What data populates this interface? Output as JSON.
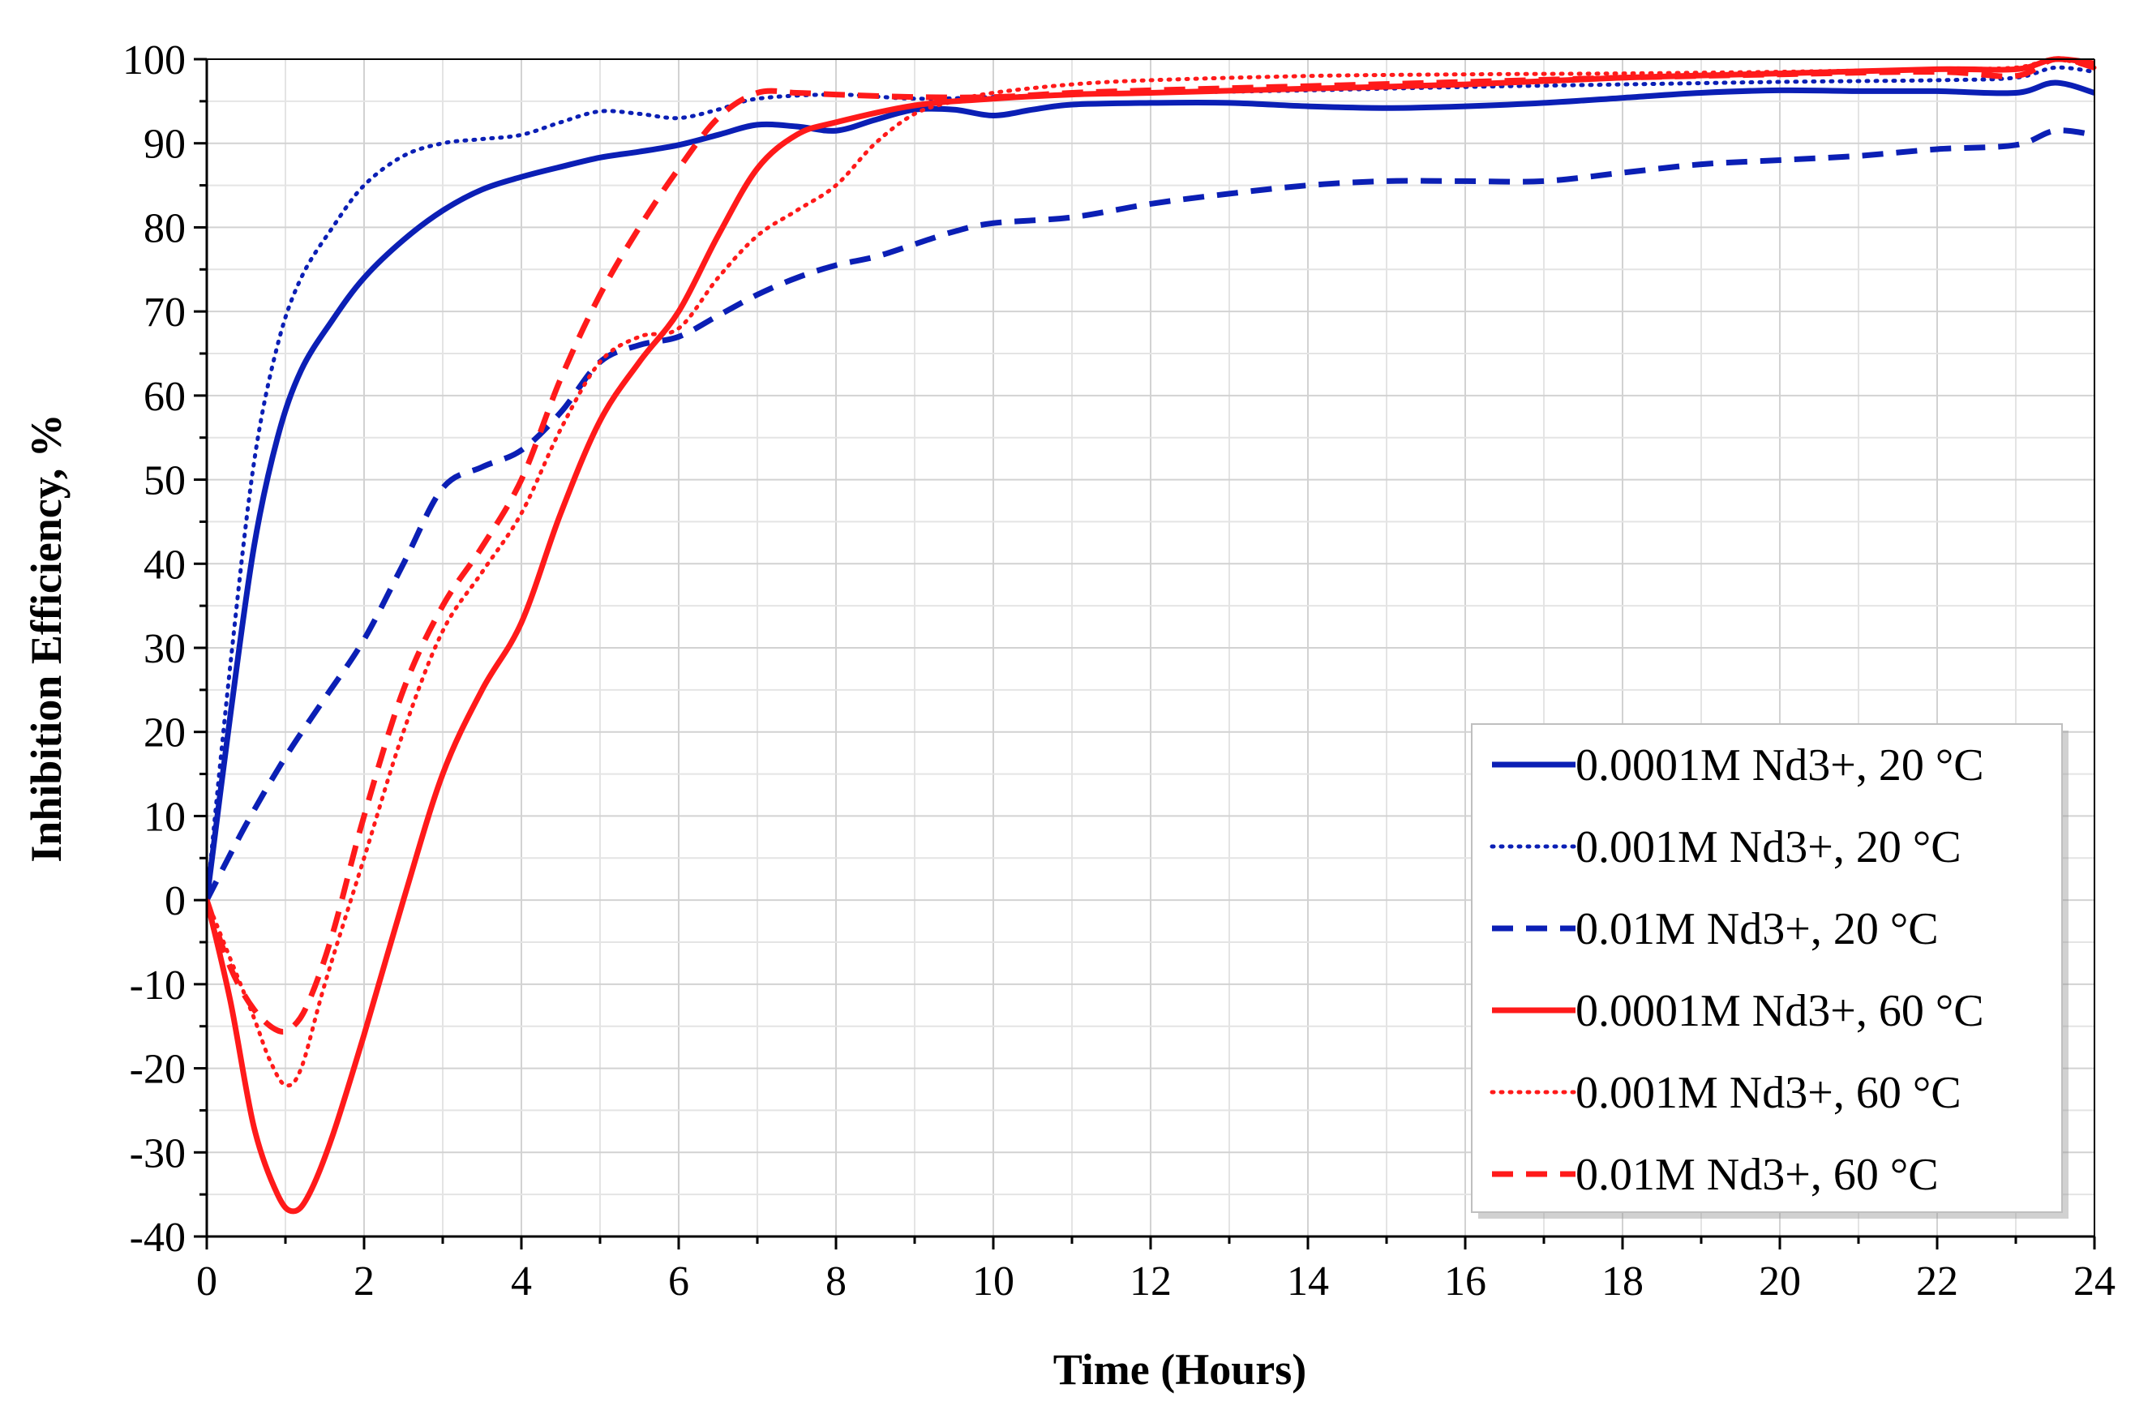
{
  "chart_data": {
    "type": "line",
    "title": "",
    "xlabel": "Time (Hours)",
    "ylabel": "Inhibition Efficiency, %",
    "xlim": [
      0,
      24
    ],
    "ylim": [
      -40,
      100
    ],
    "xticks": [
      0,
      2,
      4,
      6,
      8,
      10,
      12,
      14,
      16,
      18,
      20,
      22,
      24
    ],
    "yticks": [
      -40,
      -30,
      -20,
      -10,
      0,
      10,
      20,
      30,
      40,
      50,
      60,
      70,
      80,
      90,
      100
    ],
    "xtick_labels": [
      "0",
      "2",
      "4",
      "6",
      "8",
      "10",
      "12",
      "14",
      "16",
      "18",
      "20",
      "22",
      "24"
    ],
    "ytick_labels": [
      "-40",
      "-30",
      "-20",
      "-10",
      "0",
      "10",
      "20",
      "30",
      "40",
      "50",
      "60",
      "70",
      "80",
      "90",
      "100"
    ],
    "grid": true,
    "legend_position": "bottom-right",
    "series": [
      {
        "name": "0.0001M Nd3+, 20 °C",
        "color": "#0b1fb5",
        "style": "solid",
        "x": [
          0,
          0.3,
          0.6,
          0.9,
          1.2,
          1.6,
          2.0,
          2.5,
          3.0,
          3.5,
          4.0,
          4.5,
          5.0,
          5.5,
          6.0,
          6.5,
          7.0,
          7.5,
          8.0,
          8.5,
          9.0,
          9.5,
          10.0,
          10.5,
          11.0,
          12.0,
          13.0,
          14.0,
          15.0,
          16.0,
          17.0,
          18.0,
          19.0,
          20.0,
          21.0,
          22.0,
          23.0,
          23.5,
          24.0
        ],
        "y": [
          0,
          22,
          42,
          55,
          63,
          69,
          74,
          78.5,
          82,
          84.5,
          86,
          87.2,
          88.3,
          89,
          89.8,
          91,
          92.2,
          92,
          91.5,
          92.8,
          94,
          94,
          93.3,
          94,
          94.6,
          94.8,
          94.8,
          94.4,
          94.2,
          94.4,
          94.8,
          95.4,
          96,
          96.3,
          96.2,
          96.2,
          96,
          97.2,
          96
        ]
      },
      {
        "name": "0.001M Nd3+, 20 °C",
        "color": "#0b1fb5",
        "style": "dotted",
        "x": [
          0,
          0.3,
          0.6,
          0.9,
          1.2,
          1.6,
          2.0,
          2.5,
          3.0,
          3.5,
          4.0,
          4.5,
          5.0,
          5.5,
          6.0,
          6.5,
          7.0,
          8.0,
          9.0,
          10.0,
          11.0,
          12.0,
          14.0,
          16.0,
          18.0,
          20.0,
          22.0,
          23.0,
          23.5,
          24.0
        ],
        "y": [
          0,
          28,
          52,
          66,
          74,
          80,
          85,
          88.5,
          90,
          90.5,
          91,
          92.5,
          93.8,
          93.5,
          93,
          94,
          95.3,
          95.8,
          95.3,
          95.5,
          95.8,
          96,
          96.3,
          96.7,
          97,
          97.3,
          97.5,
          97.8,
          99,
          98.5
        ]
      },
      {
        "name": "0.01M Nd3+, 20 °C",
        "color": "#0b1fb5",
        "style": "dashed",
        "x": [
          0,
          0.5,
          1.0,
          1.5,
          2.0,
          2.5,
          3.0,
          3.5,
          4.0,
          4.5,
          5.0,
          5.5,
          6.0,
          6.5,
          7.0,
          7.5,
          8.0,
          8.5,
          9.0,
          9.5,
          10.0,
          11.0,
          12.0,
          13.0,
          14.0,
          15.0,
          16.0,
          17.0,
          18.0,
          19.0,
          20.0,
          21.0,
          22.0,
          23.0,
          23.5,
          24.0
        ],
        "y": [
          0,
          9,
          17,
          24,
          31,
          40,
          49,
          51.5,
          53.5,
          58,
          64,
          66,
          67,
          69.5,
          72,
          74,
          75.5,
          76.5,
          78,
          79.5,
          80.5,
          81.2,
          82.8,
          84,
          85,
          85.5,
          85.5,
          85.5,
          86.5,
          87.5,
          88,
          88.5,
          89.3,
          89.8,
          91.5,
          91
        ]
      },
      {
        "name": "0.0001M Nd3+, 60 °C",
        "color": "#ff1a1a",
        "style": "solid",
        "x": [
          0,
          0.3,
          0.6,
          0.9,
          1.1,
          1.3,
          1.6,
          2.0,
          2.5,
          3.0,
          3.5,
          4.0,
          4.5,
          5.0,
          5.5,
          6.0,
          6.5,
          7.0,
          7.5,
          8.0,
          9.0,
          10.0,
          11.0,
          12.0,
          14.0,
          16.0,
          18.0,
          20.0,
          22.0,
          23.0,
          23.5,
          24.0
        ],
        "y": [
          0,
          -12,
          -27,
          -35,
          -37,
          -35,
          -28,
          -16,
          0,
          15,
          25,
          33,
          46,
          57,
          64,
          70,
          79,
          87,
          91,
          92.5,
          94.5,
          95.3,
          95.8,
          96,
          96.5,
          97,
          97.8,
          98.3,
          98.8,
          98.8,
          100,
          99.5
        ]
      },
      {
        "name": "0.001M Nd3+, 60 °C",
        "color": "#ff1a1a",
        "style": "dotted",
        "x": [
          0,
          0.3,
          0.6,
          0.8,
          1.0,
          1.2,
          1.5,
          2.0,
          2.5,
          3.0,
          3.5,
          4.0,
          4.5,
          5.0,
          5.5,
          6.0,
          6.5,
          7.0,
          7.5,
          8.0,
          8.5,
          9.0,
          9.5,
          10.0,
          11.0,
          12.0,
          14.0,
          16.0,
          18.0,
          20.0,
          22.0,
          23.0,
          23.5,
          24.0
        ],
        "y": [
          0,
          -7,
          -14,
          -19,
          -22,
          -20,
          -10,
          5,
          20,
          32,
          39,
          46,
          56,
          64,
          67,
          68,
          74,
          79,
          82,
          85,
          90,
          93.5,
          95,
          96,
          97,
          97.5,
          98,
          98.2,
          98.3,
          98.5,
          98.8,
          99,
          100,
          99
        ]
      },
      {
        "name": "0.01M Nd3+, 60 °C",
        "color": "#ff1a1a",
        "style": "dashed",
        "x": [
          0,
          0.3,
          0.6,
          0.9,
          1.1,
          1.3,
          1.6,
          2.0,
          2.5,
          3.0,
          3.5,
          4.0,
          4.5,
          5.0,
          5.5,
          6.0,
          6.5,
          7.0,
          7.5,
          8.0,
          9.0,
          10.0,
          11.0,
          12.0,
          14.0,
          16.0,
          18.0,
          20.0,
          22.0,
          23.0,
          23.5,
          24.0
        ],
        "y": [
          0,
          -8,
          -13,
          -15.5,
          -15,
          -12,
          -4,
          10,
          25,
          35,
          42,
          50,
          62,
          72,
          80,
          87,
          93,
          96,
          96,
          95.8,
          95.5,
          95.5,
          96,
          96.3,
          96.8,
          97.3,
          97.8,
          98.2,
          98.5,
          98,
          100,
          99
        ]
      }
    ]
  }
}
